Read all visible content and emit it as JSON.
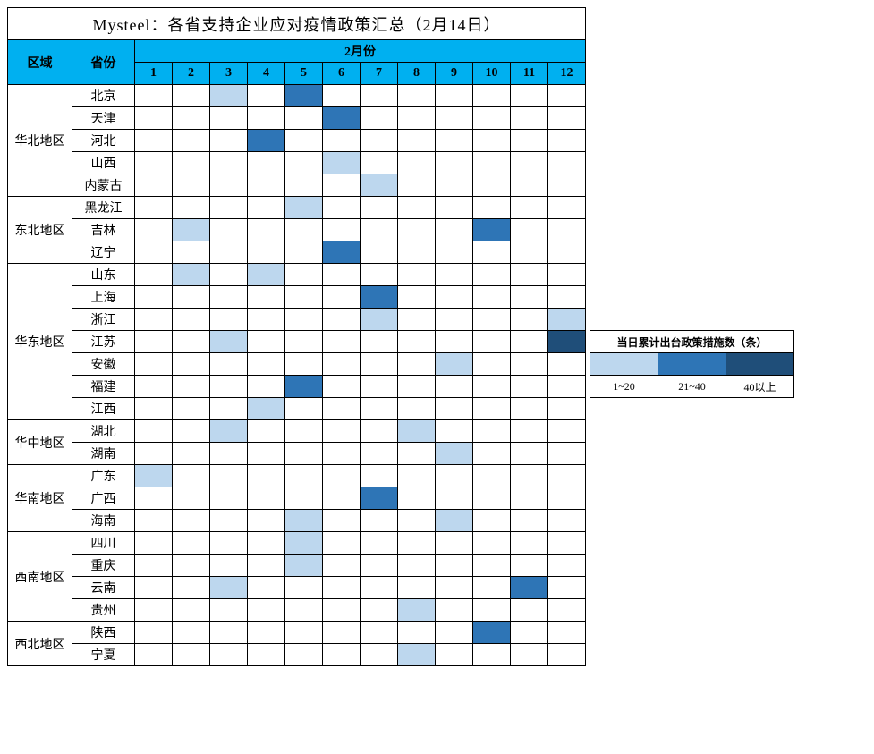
{
  "title": "Mysteel：各省支持企业应对疫情政策汇总（2月14日）",
  "headers": {
    "region": "区域",
    "province": "省份",
    "month": "2月份"
  },
  "days": [
    "1",
    "2",
    "3",
    "4",
    "5",
    "6",
    "7",
    "8",
    "9",
    "10",
    "11",
    "12"
  ],
  "colors": {
    "header_bg": "#00B0F0",
    "light": "#BDD7EE",
    "medium": "#2E75B6",
    "dark": "#1F4E79",
    "white": "#FFFFFF",
    "border": "#000000"
  },
  "legend": {
    "title": "当日累计出台政策措施数（条）",
    "items": [
      {
        "label": "1~20",
        "color": "#BDD7EE"
      },
      {
        "label": "21~40",
        "color": "#2E75B6"
      },
      {
        "label": "40以上",
        "color": "#1F4E79"
      }
    ]
  },
  "legend_offset_rows": 11,
  "regions": [
    {
      "name": "华北地区",
      "provinces": [
        {
          "name": "北京",
          "cells": {
            "3": "light",
            "5": "medium"
          }
        },
        {
          "name": "天津",
          "cells": {
            "6": "medium"
          }
        },
        {
          "name": "河北",
          "cells": {
            "4": "medium"
          }
        },
        {
          "name": "山西",
          "cells": {
            "6": "light"
          }
        },
        {
          "name": "内蒙古",
          "cells": {
            "7": "light"
          }
        }
      ]
    },
    {
      "name": "东北地区",
      "provinces": [
        {
          "name": "黑龙江",
          "cells": {
            "5": "light"
          }
        },
        {
          "name": "吉林",
          "cells": {
            "2": "light",
            "10": "medium"
          }
        },
        {
          "name": "辽宁",
          "cells": {
            "6": "medium"
          }
        }
      ]
    },
    {
      "name": "华东地区",
      "provinces": [
        {
          "name": "山东",
          "cells": {
            "2": "light",
            "4": "light"
          }
        },
        {
          "name": "上海",
          "cells": {
            "7": "medium"
          }
        },
        {
          "name": "浙江",
          "cells": {
            "7": "light",
            "12": "light"
          }
        },
        {
          "name": "江苏",
          "cells": {
            "3": "light",
            "12": "dark"
          }
        },
        {
          "name": "安徽",
          "cells": {
            "9": "light"
          }
        },
        {
          "name": "福建",
          "cells": {
            "5": "medium"
          }
        },
        {
          "name": "江西",
          "cells": {
            "4": "light"
          }
        }
      ]
    },
    {
      "name": "华中地区",
      "provinces": [
        {
          "name": "湖北",
          "cells": {
            "3": "light",
            "8": "light"
          }
        },
        {
          "name": "湖南",
          "cells": {
            "9": "light"
          }
        }
      ]
    },
    {
      "name": "华南地区",
      "provinces": [
        {
          "name": "广东",
          "cells": {
            "1": "light"
          }
        },
        {
          "name": "广西",
          "cells": {
            "7": "medium"
          }
        },
        {
          "name": "海南",
          "cells": {
            "5": "light",
            "9": "light"
          }
        }
      ]
    },
    {
      "name": "西南地区",
      "provinces": [
        {
          "name": "四川",
          "cells": {
            "5": "light"
          }
        },
        {
          "name": "重庆",
          "cells": {
            "5": "light"
          }
        },
        {
          "name": "云南",
          "cells": {
            "3": "light",
            "11": "medium"
          }
        },
        {
          "name": "贵州",
          "cells": {
            "8": "light"
          }
        }
      ]
    },
    {
      "name": "西北地区",
      "provinces": [
        {
          "name": "陕西",
          "cells": {
            "10": "medium"
          }
        },
        {
          "name": "宁夏",
          "cells": {
            "8": "light"
          }
        }
      ]
    }
  ]
}
